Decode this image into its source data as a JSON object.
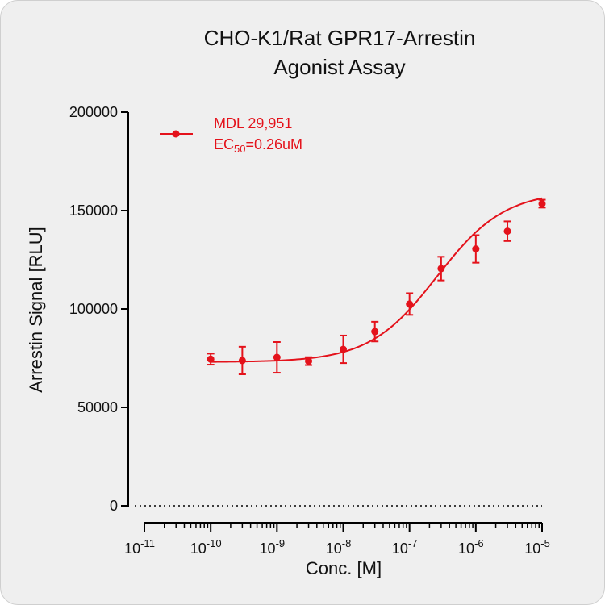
{
  "chart_data": {
    "type": "scatter",
    "title_lines": [
      "CHO-K1/Rat GPR17-Arrestin",
      "Agonist Assay"
    ],
    "xlabel": "Conc. [M]",
    "ylabel": "Arrestin Signal [RLU]",
    "x_scale": "log10",
    "xlim": [
      1e-11,
      1e-05
    ],
    "ylim": [
      0,
      200000
    ],
    "x_ticks": [
      {
        "value": 1e-11,
        "base": "10",
        "exp": "-11"
      },
      {
        "value": 1e-10,
        "base": "10",
        "exp": "-10"
      },
      {
        "value": 1e-09,
        "base": "10",
        "exp": "-9"
      },
      {
        "value": 1e-08,
        "base": "10",
        "exp": "-8"
      },
      {
        "value": 1e-07,
        "base": "10",
        "exp": "-7"
      },
      {
        "value": 1e-06,
        "base": "10",
        "exp": "-6"
      },
      {
        "value": 1e-05,
        "base": "10",
        "exp": "-5"
      }
    ],
    "y_ticks": [
      {
        "value": 0,
        "label": "0"
      },
      {
        "value": 50000,
        "label": "50000"
      },
      {
        "value": 100000,
        "label": "100000"
      },
      {
        "value": 150000,
        "label": "150000"
      },
      {
        "value": 200000,
        "label": "200000"
      }
    ],
    "baseline_dotted": true,
    "series": [
      {
        "name": "MDL 29,951",
        "color": "#e4121b",
        "x": [
          1e-10,
          3e-10,
          1e-09,
          3e-09,
          1e-08,
          3e-08,
          1e-07,
          3e-07,
          1e-06,
          3e-06,
          1e-05
        ],
        "y": [
          74500,
          73800,
          75400,
          73500,
          79500,
          88500,
          102500,
          120500,
          130500,
          139500,
          153500
        ],
        "error": [
          2800,
          7000,
          7800,
          2000,
          7000,
          5000,
          5500,
          6000,
          7000,
          5000,
          2000
        ],
        "fit": {
          "model": "4PL",
          "bottom": 73000,
          "top": 160000,
          "ec50": 2.6e-07,
          "hill": 0.85
        }
      }
    ],
    "legend": {
      "position": "top-left",
      "label": "MDL 29,951",
      "ec50_prefix": "EC",
      "ec50_sub": "50",
      "ec50_value": "=0.26uM"
    }
  }
}
